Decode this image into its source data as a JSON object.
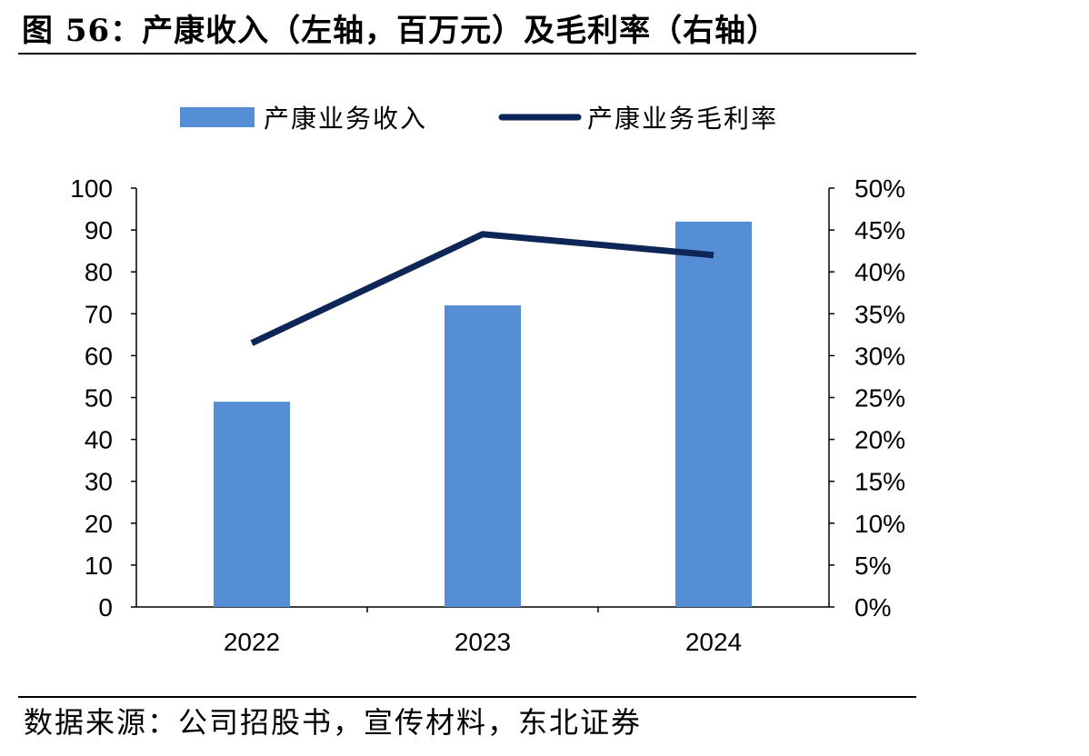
{
  "title": "图 56：产康收入（左轴，百万元）及毛利率（右轴）",
  "source": "数据来源：公司招股书，宣传材料，东北证券",
  "colors": {
    "bar": "#558ED5",
    "line": "#0E2557",
    "axis": "#000000"
  },
  "chart_data": {
    "type": "bar",
    "categories": [
      "2022",
      "2023",
      "2024"
    ],
    "series": [
      {
        "name": "产康业务收入",
        "type": "bar",
        "axis": "left",
        "values": [
          49,
          72,
          92
        ]
      },
      {
        "name": "产康业务毛利率",
        "type": "line",
        "axis": "right",
        "values": [
          0.315,
          0.445,
          0.42
        ]
      }
    ],
    "y_left": {
      "min": 0,
      "max": 100,
      "step": 10
    },
    "y_right": {
      "min": 0,
      "max": 0.5,
      "step": 0.05,
      "format": "percent"
    },
    "legend_position": "top",
    "grid": false
  }
}
